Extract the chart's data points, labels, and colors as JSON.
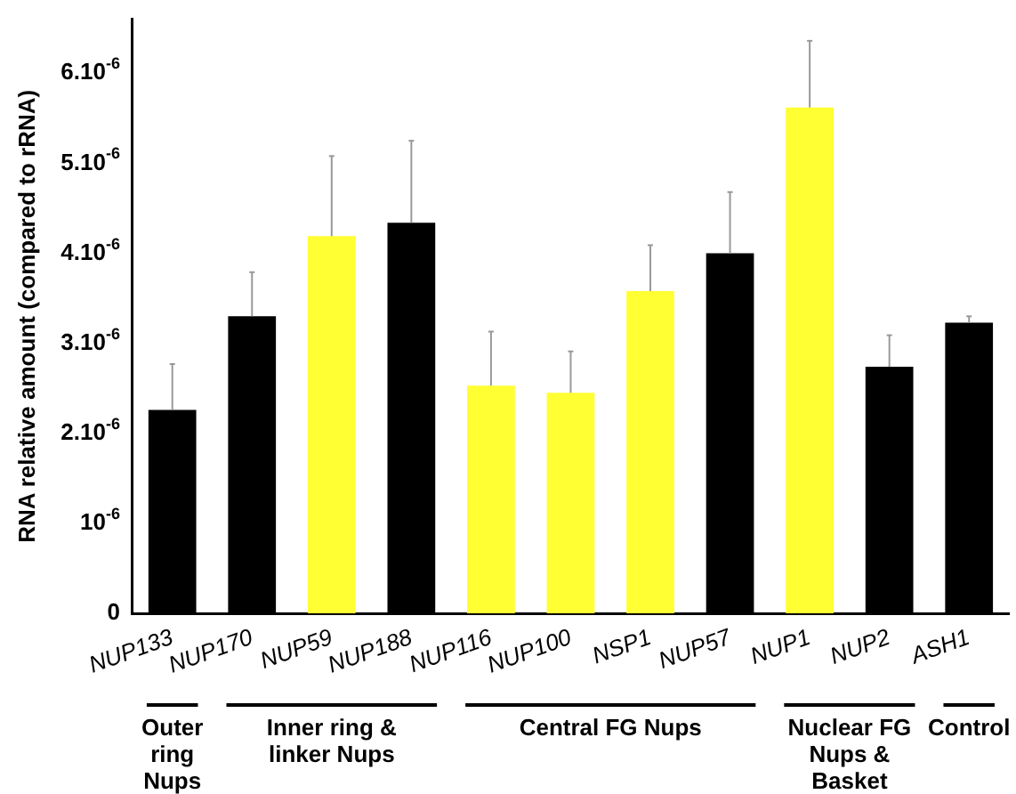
{
  "chart_data": {
    "type": "bar",
    "ylabel": "RNA relative amount (compared to rRNA)",
    "categories": [
      "NUP133",
      "NUP170",
      "NUP59",
      "NUP188",
      "NUP116",
      "NUP100",
      "NSP1",
      "NUP57",
      "NUP1",
      "NUP2",
      "ASH1"
    ],
    "values": [
      2.26e-06,
      3.3e-06,
      4.19e-06,
      4.34e-06,
      2.53e-06,
      2.45e-06,
      3.58e-06,
      4e-06,
      5.62e-06,
      2.74e-06,
      3.23e-06
    ],
    "colors": [
      "#000000",
      "#000000",
      "#ffff33",
      "#000000",
      "#ffff33",
      "#ffff33",
      "#ffff33",
      "#000000",
      "#ffff33",
      "#000000",
      "#000000"
    ],
    "errors": [
      [
        2.26e-06,
        2.77e-06
      ],
      [
        3.3e-06,
        3.79e-06
      ],
      [
        4.19e-06,
        5.08e-06
      ],
      [
        4.34e-06,
        5.25e-06
      ],
      [
        2.53e-06,
        3.13e-06
      ],
      [
        2.45e-06,
        2.91e-06
      ],
      [
        3.58e-06,
        4.09e-06
      ],
      [
        4e-06,
        4.68e-06
      ],
      [
        5.62e-06,
        6.36e-06
      ],
      [
        2.74e-06,
        3.09e-06
      ],
      [
        3.23e-06,
        3.3e-06
      ]
    ],
    "ylim": [
      0,
      6.6e-06
    ],
    "yticks": [
      0,
      {
        "value": 1e-06,
        "label": "10$^{-6}$"
      },
      {
        "value": 2e-06,
        "label": "2.10$^{-6}$"
      },
      {
        "value": 3e-06,
        "label": "3.10$^{-6}$"
      },
      {
        "value": 4e-06,
        "label": "4.10$^{-6}$"
      },
      {
        "value": 5e-06,
        "label": "5.10$^{-6}$"
      },
      {
        "value": 6e-06,
        "label": "6.10$^{-6}$"
      }
    ],
    "annotations": [
      "Outer ring Nups",
      "Inner ring & linker Nups",
      "Central FG Nups",
      "Nuclear FG Nups & Basket",
      "Control"
    ],
    "grid": false,
    "legend": false
  }
}
